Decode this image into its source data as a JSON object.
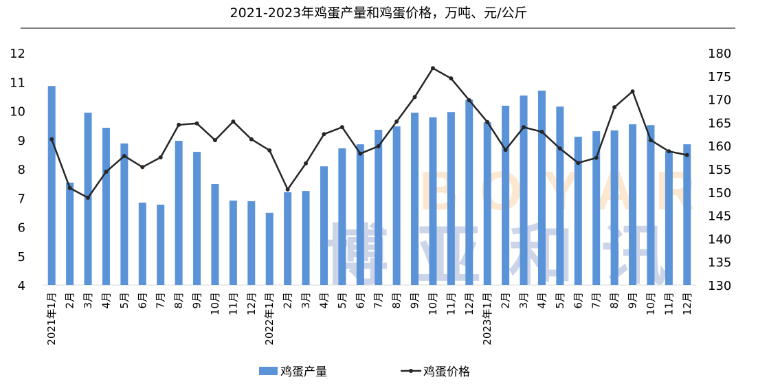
{
  "chart_data": {
    "type": "bar+line",
    "title": "2021-2023年鸡蛋产量和鸡蛋价格，万吨、元/公斤",
    "categories": [
      "2021年1月",
      "2月",
      "3月",
      "4月",
      "5月",
      "6月",
      "7月",
      "8月",
      "9月",
      "10月",
      "11月",
      "12月",
      "2022年1月",
      "2月",
      "3月",
      "4月",
      "5月",
      "6月",
      "7月",
      "8月",
      "9月",
      "10月",
      "11月",
      "12月",
      "2023年1月",
      "2月",
      "3月",
      "4月",
      "5月",
      "6月",
      "7月",
      "8月",
      "9月",
      "10月",
      "11月",
      "12月"
    ],
    "series": [
      {
        "name": "鸡蛋产量",
        "type": "bar",
        "axis": "left",
        "color": "#5B93D9",
        "values": [
          10.86,
          7.53,
          9.94,
          9.42,
          8.88,
          6.84,
          6.77,
          8.97,
          8.59,
          7.48,
          6.91,
          6.89,
          6.49,
          7.2,
          7.24,
          8.09,
          8.71,
          8.85,
          9.35,
          9.47,
          9.94,
          9.78,
          9.96,
          10.39,
          9.61,
          10.18,
          10.53,
          10.7,
          10.15,
          9.11,
          9.3,
          9.33,
          9.54,
          9.51,
          8.62,
          8.85
        ]
      },
      {
        "name": "鸡蛋价格",
        "type": "line",
        "axis": "right",
        "color": "#262626",
        "values": [
          161.4,
          150.9,
          148.8,
          154.4,
          157.8,
          155.4,
          157.5,
          164.5,
          164.8,
          161.2,
          165.2,
          161.4,
          159.0,
          150.6,
          156.2,
          162.5,
          164.0,
          158.3,
          159.9,
          165.2,
          170.5,
          176.7,
          174.5,
          169.8,
          165.1,
          159.1,
          164.0,
          163.0,
          159.4,
          156.3,
          157.4,
          168.3,
          171.7,
          161.2,
          158.8,
          158.0
        ]
      }
    ],
    "yleft": {
      "lim": [
        4,
        12
      ],
      "ticks": [
        4,
        5,
        6,
        7,
        8,
        9,
        10,
        11,
        12
      ]
    },
    "yright": {
      "lim": [
        130,
        180
      ],
      "ticks": [
        130,
        135,
        140,
        145,
        150,
        155,
        160,
        165,
        170,
        175,
        180
      ]
    },
    "grid": false,
    "legend_position": "bottom",
    "watermark": "BOYAR 博亚和讯"
  }
}
